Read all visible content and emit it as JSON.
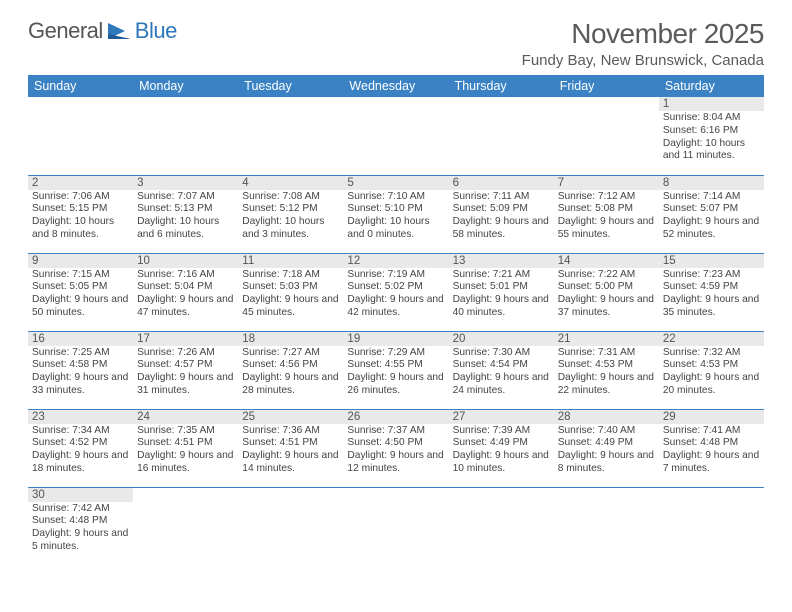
{
  "logo": {
    "part1": "General",
    "part2": "Blue"
  },
  "title": "November 2025",
  "location": "Fundy Bay, New Brunswick, Canada",
  "colors": {
    "header_bg": "#3a82c4",
    "header_text": "#ffffff",
    "daynum_bg": "#e9e9e9",
    "text": "#555555",
    "cell_border": "#3a82c4",
    "logo_accent": "#2f77bb"
  },
  "typography": {
    "title_fontsize": 28,
    "location_fontsize": 15,
    "header_fontsize": 12.5,
    "daynum_fontsize": 11.5,
    "body_fontsize": 10.2
  },
  "weekdays": [
    "Sunday",
    "Monday",
    "Tuesday",
    "Wednesday",
    "Thursday",
    "Friday",
    "Saturday"
  ],
  "weeks": [
    [
      null,
      null,
      null,
      null,
      null,
      null,
      {
        "n": "1",
        "sr": "Sunrise: 8:04 AM",
        "ss": "Sunset: 6:16 PM",
        "dl": "Daylight: 10 hours and 11 minutes."
      }
    ],
    [
      {
        "n": "2",
        "sr": "Sunrise: 7:06 AM",
        "ss": "Sunset: 5:15 PM",
        "dl": "Daylight: 10 hours and 8 minutes."
      },
      {
        "n": "3",
        "sr": "Sunrise: 7:07 AM",
        "ss": "Sunset: 5:13 PM",
        "dl": "Daylight: 10 hours and 6 minutes."
      },
      {
        "n": "4",
        "sr": "Sunrise: 7:08 AM",
        "ss": "Sunset: 5:12 PM",
        "dl": "Daylight: 10 hours and 3 minutes."
      },
      {
        "n": "5",
        "sr": "Sunrise: 7:10 AM",
        "ss": "Sunset: 5:10 PM",
        "dl": "Daylight: 10 hours and 0 minutes."
      },
      {
        "n": "6",
        "sr": "Sunrise: 7:11 AM",
        "ss": "Sunset: 5:09 PM",
        "dl": "Daylight: 9 hours and 58 minutes."
      },
      {
        "n": "7",
        "sr": "Sunrise: 7:12 AM",
        "ss": "Sunset: 5:08 PM",
        "dl": "Daylight: 9 hours and 55 minutes."
      },
      {
        "n": "8",
        "sr": "Sunrise: 7:14 AM",
        "ss": "Sunset: 5:07 PM",
        "dl": "Daylight: 9 hours and 52 minutes."
      }
    ],
    [
      {
        "n": "9",
        "sr": "Sunrise: 7:15 AM",
        "ss": "Sunset: 5:05 PM",
        "dl": "Daylight: 9 hours and 50 minutes."
      },
      {
        "n": "10",
        "sr": "Sunrise: 7:16 AM",
        "ss": "Sunset: 5:04 PM",
        "dl": "Daylight: 9 hours and 47 minutes."
      },
      {
        "n": "11",
        "sr": "Sunrise: 7:18 AM",
        "ss": "Sunset: 5:03 PM",
        "dl": "Daylight: 9 hours and 45 minutes."
      },
      {
        "n": "12",
        "sr": "Sunrise: 7:19 AM",
        "ss": "Sunset: 5:02 PM",
        "dl": "Daylight: 9 hours and 42 minutes."
      },
      {
        "n": "13",
        "sr": "Sunrise: 7:21 AM",
        "ss": "Sunset: 5:01 PM",
        "dl": "Daylight: 9 hours and 40 minutes."
      },
      {
        "n": "14",
        "sr": "Sunrise: 7:22 AM",
        "ss": "Sunset: 5:00 PM",
        "dl": "Daylight: 9 hours and 37 minutes."
      },
      {
        "n": "15",
        "sr": "Sunrise: 7:23 AM",
        "ss": "Sunset: 4:59 PM",
        "dl": "Daylight: 9 hours and 35 minutes."
      }
    ],
    [
      {
        "n": "16",
        "sr": "Sunrise: 7:25 AM",
        "ss": "Sunset: 4:58 PM",
        "dl": "Daylight: 9 hours and 33 minutes."
      },
      {
        "n": "17",
        "sr": "Sunrise: 7:26 AM",
        "ss": "Sunset: 4:57 PM",
        "dl": "Daylight: 9 hours and 31 minutes."
      },
      {
        "n": "18",
        "sr": "Sunrise: 7:27 AM",
        "ss": "Sunset: 4:56 PM",
        "dl": "Daylight: 9 hours and 28 minutes."
      },
      {
        "n": "19",
        "sr": "Sunrise: 7:29 AM",
        "ss": "Sunset: 4:55 PM",
        "dl": "Daylight: 9 hours and 26 minutes."
      },
      {
        "n": "20",
        "sr": "Sunrise: 7:30 AM",
        "ss": "Sunset: 4:54 PM",
        "dl": "Daylight: 9 hours and 24 minutes."
      },
      {
        "n": "21",
        "sr": "Sunrise: 7:31 AM",
        "ss": "Sunset: 4:53 PM",
        "dl": "Daylight: 9 hours and 22 minutes."
      },
      {
        "n": "22",
        "sr": "Sunrise: 7:32 AM",
        "ss": "Sunset: 4:53 PM",
        "dl": "Daylight: 9 hours and 20 minutes."
      }
    ],
    [
      {
        "n": "23",
        "sr": "Sunrise: 7:34 AM",
        "ss": "Sunset: 4:52 PM",
        "dl": "Daylight: 9 hours and 18 minutes."
      },
      {
        "n": "24",
        "sr": "Sunrise: 7:35 AM",
        "ss": "Sunset: 4:51 PM",
        "dl": "Daylight: 9 hours and 16 minutes."
      },
      {
        "n": "25",
        "sr": "Sunrise: 7:36 AM",
        "ss": "Sunset: 4:51 PM",
        "dl": "Daylight: 9 hours and 14 minutes."
      },
      {
        "n": "26",
        "sr": "Sunrise: 7:37 AM",
        "ss": "Sunset: 4:50 PM",
        "dl": "Daylight: 9 hours and 12 minutes."
      },
      {
        "n": "27",
        "sr": "Sunrise: 7:39 AM",
        "ss": "Sunset: 4:49 PM",
        "dl": "Daylight: 9 hours and 10 minutes."
      },
      {
        "n": "28",
        "sr": "Sunrise: 7:40 AM",
        "ss": "Sunset: 4:49 PM",
        "dl": "Daylight: 9 hours and 8 minutes."
      },
      {
        "n": "29",
        "sr": "Sunrise: 7:41 AM",
        "ss": "Sunset: 4:48 PM",
        "dl": "Daylight: 9 hours and 7 minutes."
      }
    ],
    [
      {
        "n": "30",
        "sr": "Sunrise: 7:42 AM",
        "ss": "Sunset: 4:48 PM",
        "dl": "Daylight: 9 hours and 5 minutes."
      },
      null,
      null,
      null,
      null,
      null,
      null
    ]
  ]
}
